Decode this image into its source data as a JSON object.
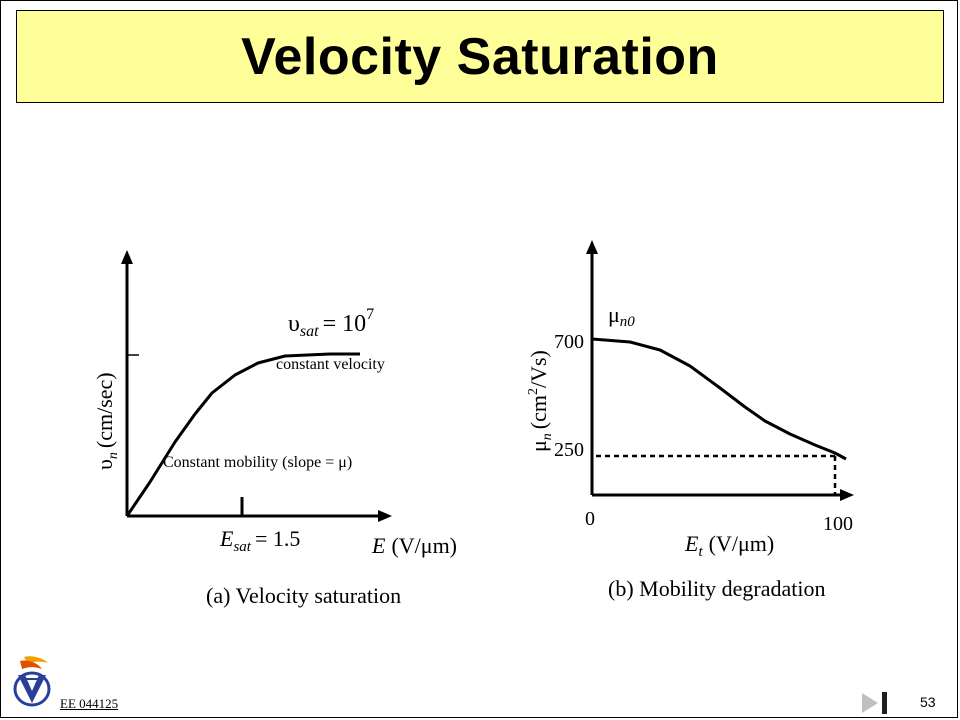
{
  "slide": {
    "title": "Velocity Saturation",
    "footer_code": "EE 044125",
    "page_number": "53"
  },
  "left_plot": {
    "y_axis_symbol": "υ",
    "y_axis_sub": "n",
    "y_axis_unit": "(cm/sec)",
    "sat_symbol": "υ",
    "sat_sub": "sat",
    "sat_eq": "= 10",
    "sat_exp": "7",
    "constant_velocity_label": "constant velocity",
    "constant_mobility_label": "Constant mobility (slope = μ)",
    "esat_symbol": "E",
    "esat_sub": "sat",
    "esat_eq": "= 1.5",
    "x_axis_symbol": "E",
    "x_axis_unit": "(V/μm)",
    "caption": "(a) Velocity saturation"
  },
  "right_plot": {
    "y_axis_symbol": "μ",
    "y_axis_sub": "n",
    "y_axis_unit_a": "(cm",
    "y_axis_unit_exp": "2",
    "y_axis_unit_b": "/Vs)",
    "mu_n0_symbol": "μ",
    "mu_n0_sub": "n0",
    "tick_700": "700",
    "tick_250": "250",
    "tick_0": "0",
    "tick_100": "100",
    "x_axis_symbol": "E",
    "x_axis_sub": "t",
    "x_axis_unit": "(V/μm)",
    "caption": "(b) Mobility degradation"
  },
  "icons": {
    "logo": "technion-logo-icon",
    "play": "next-slide-icon",
    "end": "last-slide-icon"
  },
  "colors": {
    "title_bg": "#ffff99",
    "ink": "#000000"
  }
}
